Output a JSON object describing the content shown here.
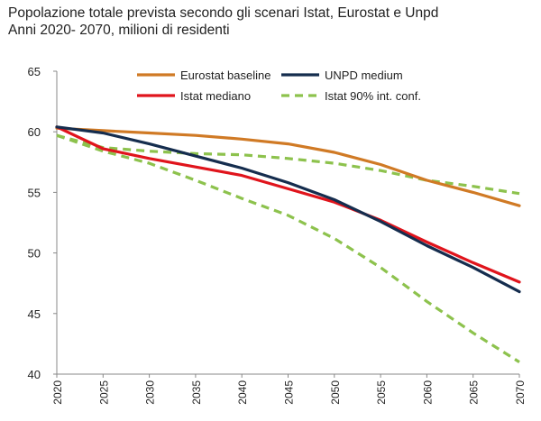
{
  "title": "Popolazione totale prevista secondo gli scenari Istat, Eurostat e Unpd",
  "subtitle": "Anni 2020- 2070, milioni di residenti",
  "chart_data": {
    "type": "line",
    "title": "Popolazione totale prevista secondo gli scenari Istat, Eurostat e Unpd",
    "subtitle": "Anni 2020- 2070, milioni di residenti",
    "xlabel": "",
    "ylabel": "",
    "xlim": [
      2020,
      2070
    ],
    "ylim": [
      40,
      65
    ],
    "x_ticks": [
      2020,
      2025,
      2030,
      2035,
      2040,
      2045,
      2050,
      2055,
      2060,
      2065,
      2070
    ],
    "y_ticks": [
      40,
      45,
      50,
      55,
      60,
      65
    ],
    "grid": false,
    "legend_position": "top",
    "x": [
      2020,
      2025,
      2030,
      2035,
      2040,
      2045,
      2050,
      2055,
      2060,
      2065,
      2070
    ],
    "series": [
      {
        "name": "Eurostat baseline",
        "color": "#d07a25",
        "dash": "solid",
        "values": [
          60.3,
          60.1,
          59.9,
          59.7,
          59.4,
          59.0,
          58.3,
          57.3,
          56.0,
          55.0,
          53.9
        ]
      },
      {
        "name": "UNPD medium",
        "color": "#152d4e",
        "dash": "solid",
        "values": [
          60.4,
          59.9,
          59.0,
          58.0,
          57.0,
          55.8,
          54.4,
          52.6,
          50.6,
          48.8,
          46.8
        ]
      },
      {
        "name": "Istat mediano",
        "color": "#e0141c",
        "dash": "solid",
        "values": [
          60.4,
          58.6,
          57.8,
          57.1,
          56.4,
          55.3,
          54.2,
          52.7,
          50.9,
          49.2,
          47.6
        ]
      },
      {
        "name": "Istat 90% int. conf.",
        "color": "#8dc24d",
        "dash": "dashed",
        "values": [
          59.7,
          58.7,
          58.4,
          58.2,
          58.1,
          57.8,
          57.4,
          56.8,
          56.0,
          55.5,
          54.9
        ]
      },
      {
        "name": "",
        "color": "#8dc24d",
        "dash": "dashed",
        "values": [
          59.7,
          58.4,
          57.4,
          56.0,
          54.5,
          53.1,
          51.2,
          48.8,
          46.0,
          43.4,
          41.0
        ]
      }
    ]
  }
}
